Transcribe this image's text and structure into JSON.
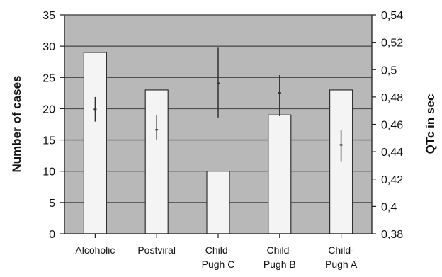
{
  "chart_data": {
    "type": "bar",
    "categories": [
      [
        "Alcoholic"
      ],
      [
        "Postviral"
      ],
      [
        "Child-",
        "Pugh C"
      ],
      [
        "Child-",
        "Pugh B"
      ],
      [
        "Child-",
        "Pugh A"
      ]
    ],
    "series": [
      {
        "type": "bar",
        "axis": "left",
        "values": [
          29,
          23,
          10,
          19,
          23
        ]
      },
      {
        "type": "errorbar",
        "axis": "right",
        "center": [
          0.471,
          0.456,
          0.49,
          0.483,
          0.445
        ],
        "low": [
          0.462,
          0.449,
          0.465,
          0.466,
          0.433
        ],
        "high": [
          0.48,
          0.467,
          0.516,
          0.496,
          0.456
        ]
      }
    ],
    "ylabel": "Number of cases",
    "y2label": "QTc in sec",
    "ylim": [
      0,
      35
    ],
    "y2lim": [
      0.38,
      0.54
    ],
    "yticks": [
      0,
      5,
      10,
      15,
      20,
      25,
      30,
      35
    ],
    "y2ticks": [
      "0,38",
      "0,4",
      "0,42",
      "0,44",
      "0,46",
      "0,48",
      "0,5",
      "0,52",
      "0,54"
    ],
    "grid": true,
    "colors": {
      "plot_background": "#b8b8b8",
      "bar_fill": "#f4f4f4",
      "bar_stroke": "#303030",
      "grid": "#505050",
      "axis": "#202020",
      "errorbar": "#303030"
    }
  }
}
